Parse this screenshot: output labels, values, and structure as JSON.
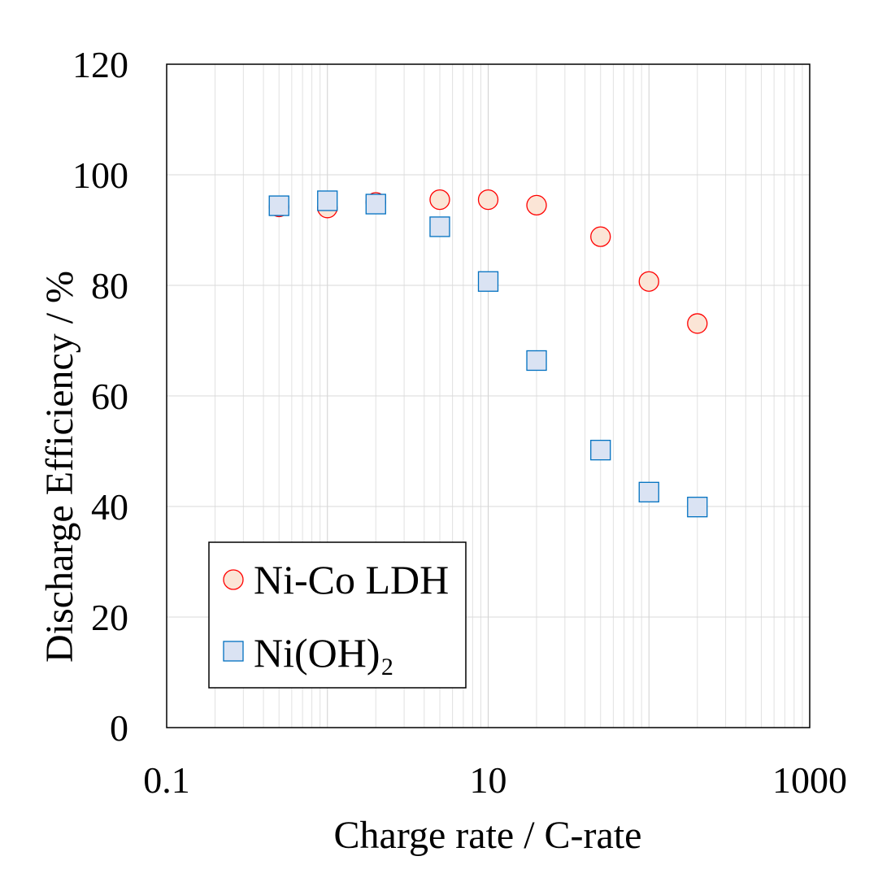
{
  "chart_data": {
    "type": "scatter",
    "xlabel": "Charge rate / C-rate",
    "ylabel": "Discharge Efficiency / %",
    "x_scale": "log",
    "xlim": [
      0.1,
      1000
    ],
    "ylim": [
      0,
      120
    ],
    "x_ticks": [
      0.1,
      10,
      1000
    ],
    "x_tick_labels": [
      "0.1",
      "10",
      "1000"
    ],
    "y_ticks": [
      0,
      20,
      40,
      60,
      80,
      100,
      120
    ],
    "y_tick_labels": [
      "0",
      "20",
      "40",
      "60",
      "80",
      "100",
      "120"
    ],
    "grid": true,
    "legend_position": "bottom-left",
    "series": [
      {
        "name": "Ni-Co LDH",
        "marker": "circle",
        "fill": "#fbe5d6",
        "stroke": "#ff0000",
        "x": [
          0.5,
          1,
          2,
          5,
          10,
          20,
          50,
          100,
          200
        ],
        "y": [
          94.2,
          94,
          95,
          95.5,
          95.5,
          94.5,
          88.8,
          80.7,
          73.1
        ]
      },
      {
        "name": "Ni(OH)₂",
        "marker": "square",
        "fill": "#dae3f3",
        "stroke": "#0070c0",
        "x": [
          0.5,
          1,
          2,
          5,
          10,
          20,
          50,
          100,
          200
        ],
        "y": [
          94.4,
          95.3,
          94.7,
          90.6,
          80.7,
          66.4,
          50.2,
          42.6,
          39.9
        ]
      }
    ]
  }
}
